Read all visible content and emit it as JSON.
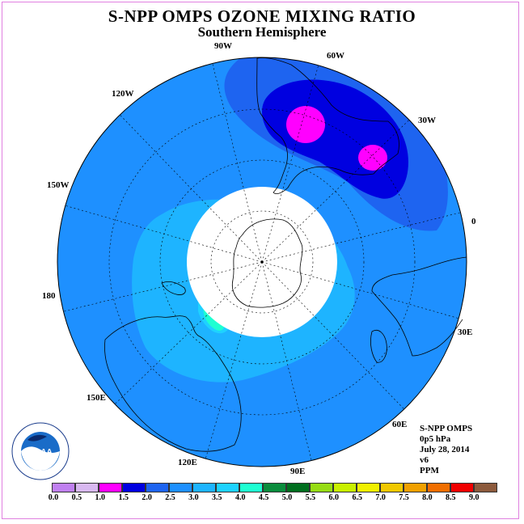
{
  "title": "S-NPP OMPS OZONE MIXING RATIO",
  "subtitle": "Southern Hemisphere",
  "longitude_labels": [
    "90W",
    "60W",
    "30W",
    "0",
    "30E",
    "60E",
    "90E",
    "120E",
    "150E",
    "180",
    "150W",
    "120W"
  ],
  "info": {
    "instrument": "S-NPP OMPS",
    "level": "0p5 hPa",
    "date": "July 28, 2014",
    "version": "v6",
    "units": "PPM"
  },
  "logo": {
    "text": "NOAA",
    "ring_text": "NATIONAL OCEANIC AND ATMOSPHERIC ADMINISTRATION · U.S. DEPARTMENT OF COMMERCE"
  },
  "colorbar": {
    "colors": [
      "#c080f0",
      "#d8b8f0",
      "#ff00ff",
      "#0000e0",
      "#1e64f0",
      "#1e90ff",
      "#1eb4ff",
      "#1ed2ff",
      "#1effd2",
      "#0a8c3c",
      "#006e1e",
      "#96dc14",
      "#c8f000",
      "#f0f000",
      "#f0c800",
      "#f0a000",
      "#f06e00",
      "#f00000",
      "#8c5a3c"
    ],
    "ticks": [
      "0.0",
      "0.5",
      "1.0",
      "1.5",
      "2.0",
      "2.5",
      "3.0",
      "3.5",
      "4.0",
      "4.5",
      "5.0",
      "5.5",
      "6.0",
      "6.5",
      "7.0",
      "7.5",
      "8.0",
      "8.5",
      "9.0"
    ]
  }
}
